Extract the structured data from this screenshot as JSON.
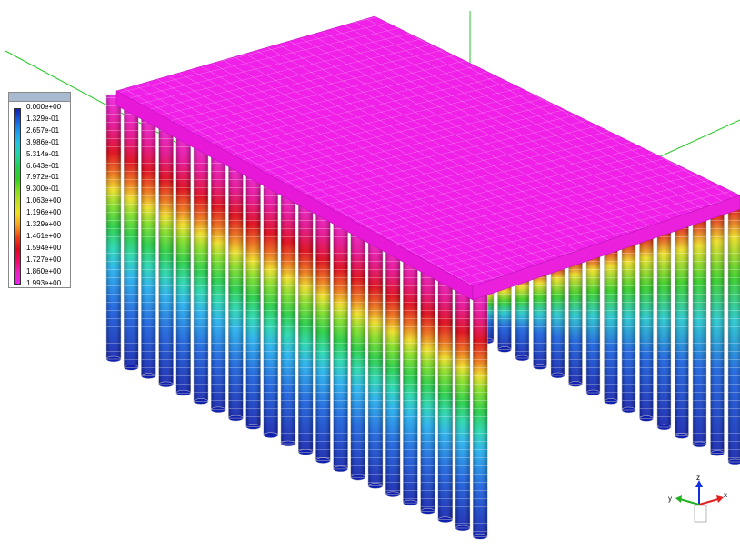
{
  "legend": {
    "labels": [
      "0.000e+00",
      "1.329e-01",
      "2.657e-01",
      "3.986e-01",
      "5.314e-01",
      "6.643e-01",
      "7.972e-01",
      "9.300e-01",
      "1.063e+00",
      "1.196e+00",
      "1.329e+00",
      "1.461e+00",
      "1.594e+00",
      "1.727e+00",
      "1.860e+00",
      "1.993e+00"
    ],
    "colors": [
      "#1020b0",
      "#1560e0",
      "#1aa0f0",
      "#22c8e0",
      "#1fd8a0",
      "#20d050",
      "#30d020",
      "#80e020",
      "#c8e020",
      "#f0e020",
      "#f8a020",
      "#f04010",
      "#e00820",
      "#f00860",
      "#f020c0",
      "#f020f0"
    ]
  },
  "triad": {
    "x": "x",
    "y": "y",
    "z": "z"
  },
  "colors": {
    "top": "#f020e8",
    "grid": "#d8d8d8",
    "axis_line": "#22cc22"
  }
}
